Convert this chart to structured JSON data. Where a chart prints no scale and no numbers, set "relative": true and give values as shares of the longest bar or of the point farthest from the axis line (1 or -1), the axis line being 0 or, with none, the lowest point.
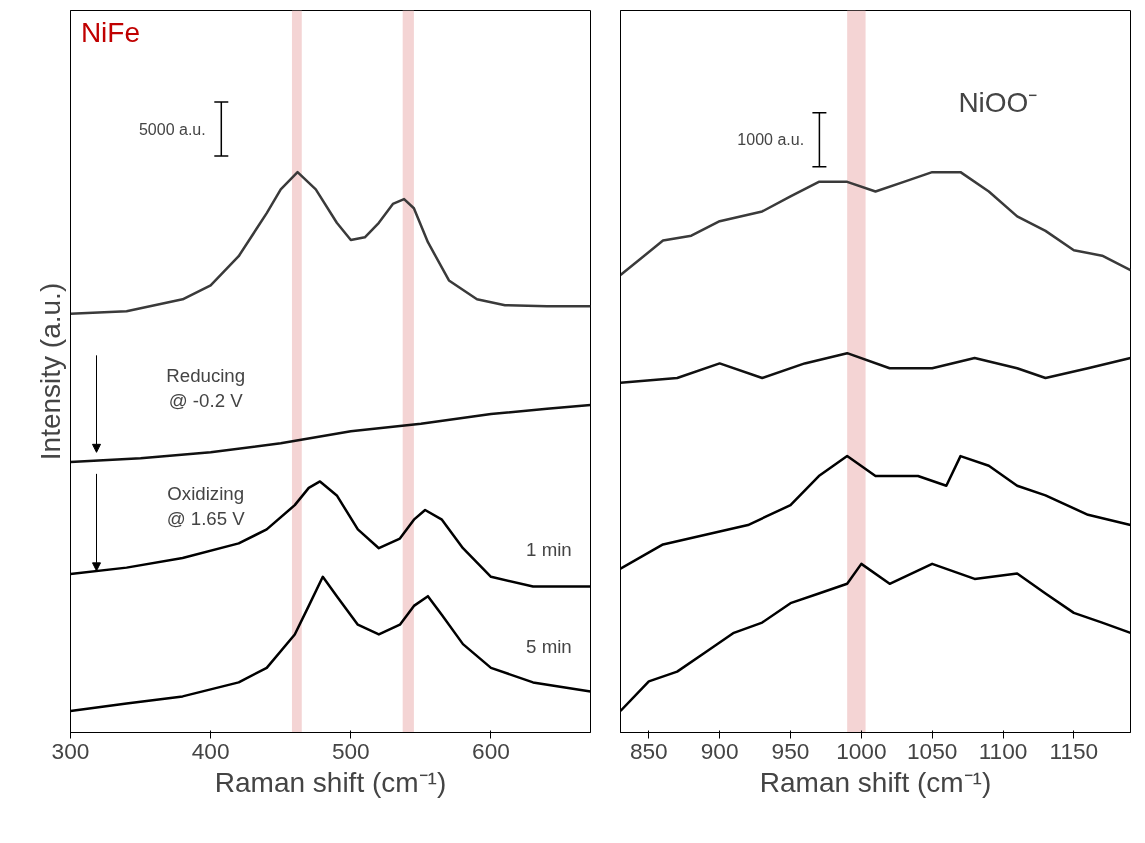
{
  "chart_data": [
    {
      "type": "line",
      "title": "NiFe",
      "xlabel": "Raman shift (cm⁻¹)",
      "ylabel": "Intensity (a.u.)",
      "relative": true,
      "xlim": [
        300,
        671
      ],
      "xticks": [
        300,
        400,
        500,
        600
      ],
      "tick_labels": "x",
      "grid": false,
      "annotations": [
        "5000 a.u.",
        "Reducing\n@ -0.2 V",
        "Oxidizing\n@ 1.65 V",
        "1 min",
        "5 min"
      ],
      "bands": [
        {
          "axis": "x",
          "from": 458,
          "to": 465,
          "color": "#f4d4d4"
        },
        {
          "axis": "x",
          "from": 537,
          "to": 545,
          "color": "#f4d4d4"
        }
      ],
      "series": [
        {
          "color": "#3a3a3a",
          "x": [
            300,
            340,
            380,
            400,
            420,
            440,
            450,
            462,
            475,
            490,
            500,
            510,
            520,
            530,
            538,
            545,
            555,
            570,
            590,
            610,
            640,
            671
          ],
          "values": [
            0.737,
            0.742,
            0.764,
            0.79,
            0.844,
            0.924,
            0.968,
            1.0,
            0.968,
            0.906,
            0.874,
            0.879,
            0.906,
            0.941,
            0.95,
            0.933,
            0.87,
            0.799,
            0.764,
            0.753,
            0.751,
            0.751
          ]
        },
        {
          "color": "#111111",
          "x": [
            300,
            350,
            400,
            450,
            500,
            550,
            600,
            640,
            671
          ],
          "values": [
            0.462,
            0.469,
            0.48,
            0.497,
            0.519,
            0.533,
            0.551,
            0.561,
            0.568
          ]
        },
        {
          "color": "#000000",
          "x": [
            300,
            340,
            380,
            420,
            440,
            460,
            470,
            478,
            490,
            505,
            520,
            535,
            545,
            553,
            565,
            580,
            600,
            630,
            671
          ],
          "values": [
            0.254,
            0.266,
            0.284,
            0.311,
            0.337,
            0.382,
            0.414,
            0.426,
            0.4,
            0.337,
            0.302,
            0.32,
            0.355,
            0.373,
            0.355,
            0.302,
            0.249,
            0.231,
            0.231
          ]
        },
        {
          "color": "#000000",
          "x": [
            300,
            340,
            380,
            420,
            440,
            460,
            470,
            480,
            490,
            505,
            520,
            535,
            545,
            555,
            565,
            580,
            600,
            630,
            671
          ],
          "values": [
            0,
            0.014,
            0.027,
            0.053,
            0.08,
            0.142,
            0.195,
            0.249,
            0.213,
            0.16,
            0.142,
            0.16,
            0.195,
            0.213,
            0.178,
            0.124,
            0.08,
            0.053,
            0.036
          ]
        }
      ]
    },
    {
      "type": "line",
      "title": "NiOO⁻",
      "xlabel": "Raman shift (cm⁻¹)",
      "relative": true,
      "xlim": [
        830,
        1190
      ],
      "xticks": [
        850,
        900,
        950,
        1000,
        1050,
        1100,
        1150
      ],
      "tick_labels": "x",
      "grid": false,
      "annotations": [
        "1000 a.u."
      ],
      "bands": [
        {
          "axis": "x",
          "from": 990,
          "to": 1003,
          "color": "#f4d4d4"
        }
      ],
      "series": [
        {
          "color": "#3a3a3a",
          "x": [
            830,
            860,
            880,
            900,
            930,
            950,
            970,
            990,
            1010,
            1030,
            1050,
            1070,
            1090,
            1110,
            1130,
            1150,
            1170,
            1190
          ],
          "values": [
            0.809,
            0.873,
            0.882,
            0.909,
            0.927,
            0.955,
            0.982,
            0.982,
            0.964,
            0.982,
            1.0,
            1.0,
            0.964,
            0.918,
            0.891,
            0.855,
            0.845,
            0.818
          ]
        },
        {
          "color": "#111111",
          "x": [
            830,
            870,
            900,
            930,
            960,
            990,
            1020,
            1050,
            1080,
            1110,
            1130,
            1160,
            1190
          ],
          "values": [
            0.609,
            0.618,
            0.645,
            0.618,
            0.645,
            0.664,
            0.636,
            0.636,
            0.655,
            0.636,
            0.618,
            0.636,
            0.655
          ]
        },
        {
          "color": "#000000",
          "x": [
            830,
            860,
            890,
            920,
            950,
            970,
            990,
            1010,
            1040,
            1060,
            1070,
            1090,
            1110,
            1130,
            1160,
            1190
          ],
          "values": [
            0.264,
            0.309,
            0.327,
            0.345,
            0.382,
            0.436,
            0.473,
            0.436,
            0.436,
            0.418,
            0.473,
            0.455,
            0.418,
            0.4,
            0.364,
            0.345
          ]
        },
        {
          "color": "#000000",
          "x": [
            830,
            850,
            870,
            890,
            910,
            930,
            950,
            970,
            990,
            1000,
            1020,
            1050,
            1080,
            1110,
            1130,
            1150,
            1170,
            1190
          ],
          "values": [
            0,
            0.055,
            0.073,
            0.109,
            0.145,
            0.164,
            0.2,
            0.218,
            0.236,
            0.273,
            0.236,
            0.273,
            0.245,
            0.255,
            0.218,
            0.182,
            0.164,
            0.145
          ]
        }
      ]
    }
  ]
}
